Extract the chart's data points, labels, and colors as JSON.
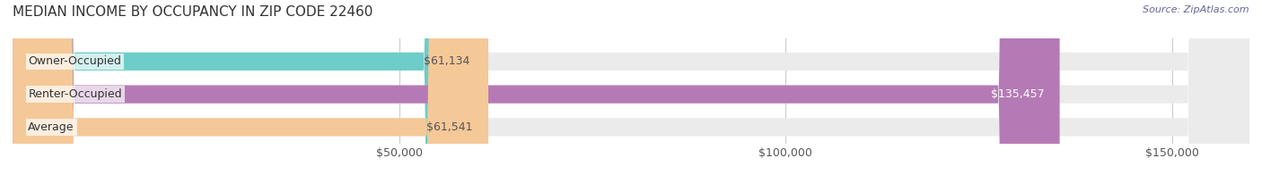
{
  "title": "MEDIAN INCOME BY OCCUPANCY IN ZIP CODE 22460",
  "source": "Source: ZipAtlas.com",
  "categories": [
    "Owner-Occupied",
    "Renter-Occupied",
    "Average"
  ],
  "values": [
    61134,
    135457,
    61541
  ],
  "bar_colors": [
    "#6dcdc8",
    "#b57ab5",
    "#f5c897"
  ],
  "bg_colors": [
    "#f0f0f0",
    "#f0f0f0",
    "#f0f0f0"
  ],
  "value_labels": [
    "$61,134",
    "$135,457",
    "$61,541"
  ],
  "label_colors": [
    "#555555",
    "#ffffff",
    "#555555"
  ],
  "xlim": [
    0,
    160000
  ],
  "xticks": [
    0,
    50000,
    100000,
    150000
  ],
  "xtick_labels": [
    "",
    "$50,000",
    "$100,000",
    "$150,000"
  ],
  "bar_height": 0.55,
  "bg_color": "#ffffff",
  "title_fontsize": 11,
  "tick_fontsize": 9,
  "label_fontsize": 9,
  "value_fontsize": 9,
  "category_fontsize": 9
}
